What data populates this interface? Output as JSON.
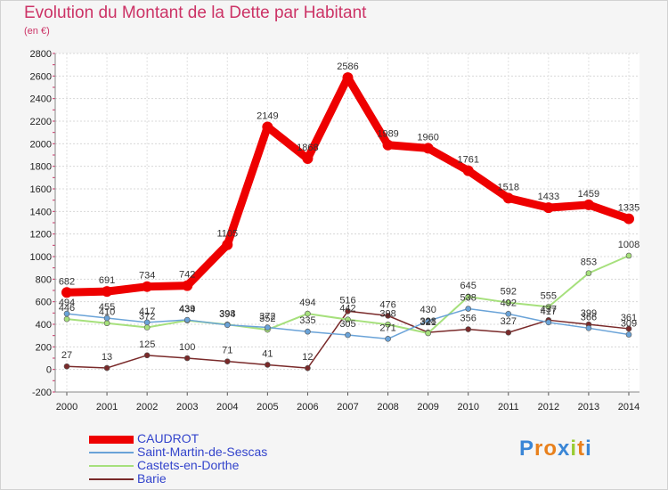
{
  "title": "Evolution du Montant de la Dette par Habitant",
  "subtitle": "(en €)",
  "logo": {
    "text": "Proxiti",
    "colors": [
      "#3a86d6",
      "#e8801c",
      "#e8801c",
      "#3a86d6",
      "#9c3",
      "#e8801c",
      "#3a86d6"
    ]
  },
  "chart_data": {
    "type": "line",
    "x": [
      2000,
      2001,
      2002,
      2003,
      2004,
      2005,
      2006,
      2007,
      2008,
      2009,
      2010,
      2011,
      2012,
      2013,
      2014
    ],
    "ylim": [
      -200,
      2800
    ],
    "yticks": [
      -200,
      0,
      200,
      400,
      600,
      800,
      1000,
      1200,
      1400,
      1600,
      1800,
      2000,
      2200,
      2400,
      2600,
      2800
    ],
    "grid": true,
    "legend_position": "bottom-left",
    "series": [
      {
        "name": "CAUDROT",
        "color": "#ee0000",
        "width": 9,
        "labels": true,
        "values": [
          682,
          691,
          734,
          742,
          1105,
          2149,
          1868,
          2586,
          1989,
          1960,
          1761,
          1518,
          1433,
          1459,
          1335
        ]
      },
      {
        "name": "Saint-Martin-de-Sescas",
        "color": "#6aa3d8",
        "width": 1.5,
        "labels": true,
        "values": [
          494,
          455,
          417,
          439,
          394,
          372,
          335,
          305,
          271,
          430,
          538,
          492,
          417,
          366,
          309
        ]
      },
      {
        "name": "Castets-en-Dorthe",
        "color": "#a6e07c",
        "width": 2,
        "labels": true,
        "values": [
          446,
          410,
          372,
          434,
          398,
          352,
          494,
          442,
          398,
          321,
          645,
          592,
          555,
          853,
          1008
        ]
      },
      {
        "name": "Barie",
        "color": "#7a2a2a",
        "width": 1.5,
        "labels": true,
        "values": [
          27,
          13,
          125,
          100,
          71,
          41,
          12,
          516,
          476,
          328,
          356,
          327,
          437,
          399,
          361
        ]
      }
    ]
  }
}
